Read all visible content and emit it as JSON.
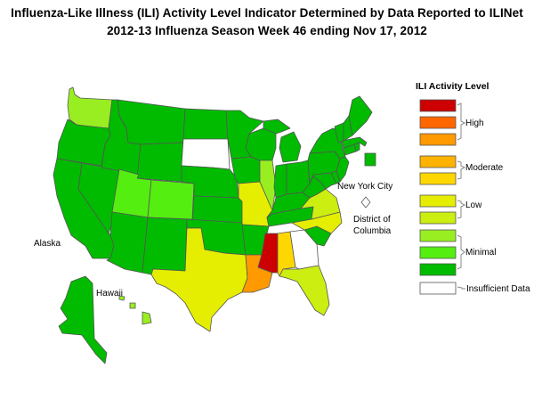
{
  "title": {
    "line1": "Influenza-Like Illness (ILI) Activity Level Indicator Determined by Data Reported to ILINet",
    "line2": "2012-13  Influenza Season Week  46 ending Nov 17, 2012"
  },
  "colors": {
    "high_10": "#cc0000",
    "high_9": "#ff6600",
    "high_8": "#ff9900",
    "moderate_7": "#ffb300",
    "moderate_6": "#ffd700",
    "low_5": "#e5ee00",
    "low_4": "#ccee11",
    "minimal_3": "#99ee22",
    "minimal_2": "#55ee11",
    "minimal_1": "#00bb00",
    "insufficient": "#ffffff",
    "border": "#555555"
  },
  "legend": {
    "title": "ILI Activity Level",
    "groups": [
      "High",
      "Moderate",
      "Low",
      "Minimal",
      "Insufficient Data"
    ]
  },
  "map_labels": {
    "alaska": "Alaska",
    "hawaii": "Hawaii",
    "nyc": "New York City",
    "dc_line1": "District of",
    "dc_line2": "Columbia"
  },
  "state_levels": {
    "WA": 3,
    "OR": 1,
    "CA": 1,
    "NV": 1,
    "ID": 1,
    "MT": 1,
    "WY": 1,
    "UT": 2,
    "CO": 2,
    "AZ": 1,
    "NM": 1,
    "ND": 1,
    "SD": "insufficient",
    "NE": 1,
    "KS": 1,
    "OK": 1,
    "TX": 5,
    "MN": 1,
    "IA": 1,
    "MO": 5,
    "AR": 1,
    "LA": 8,
    "WI": 1,
    "IL": 3,
    "MI": 1,
    "IN": 1,
    "OH": 1,
    "KY": 1,
    "TN": 1,
    "MS": 10,
    "AL": 6,
    "GA": "insufficient",
    "FL": 4,
    "SC": 1,
    "NC": 5,
    "VA": 4,
    "WV": 1,
    "MD": 1,
    "DE": 1,
    "PA": 1,
    "NY": 1,
    "NJ": 1,
    "CT": 1,
    "RI": 1,
    "MA": 1,
    "VT": 1,
    "NH": 1,
    "ME": 1,
    "AK": 1,
    "HI": 3,
    "NYC": 1,
    "DC": "insufficient"
  }
}
